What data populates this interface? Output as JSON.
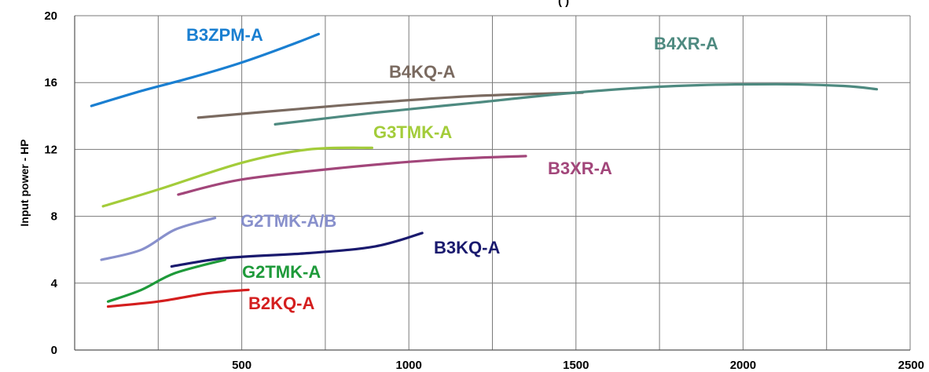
{
  "chart_data": {
    "type": "line",
    "title": "",
    "top_text": "(  )",
    "xlabel": "",
    "ylabel": "Input power - HP",
    "xlim": [
      0,
      2500
    ],
    "ylim": [
      0,
      20
    ],
    "x_ticks": [
      500,
      1000,
      1500,
      2000,
      2500
    ],
    "x_tick_labels": [
      "500",
      "1000",
      "1500",
      "2000",
      "2500"
    ],
    "y_ticks": [
      0,
      4,
      8,
      12,
      16,
      20
    ],
    "y_tick_labels": [
      "0",
      "4",
      "8",
      "12",
      "16",
      "20"
    ],
    "grid": true,
    "series": [
      {
        "name": "B3ZPM-A",
        "color": "#1a7fd1",
        "x": [
          50,
          200,
          350,
          500,
          640,
          730
        ],
        "y": [
          14.6,
          15.5,
          16.3,
          17.2,
          18.2,
          18.9
        ]
      },
      {
        "name": "B4KQ-A",
        "color": "#7a6a60",
        "x": [
          370,
          600,
          900,
          1200,
          1520
        ],
        "y": [
          13.9,
          14.3,
          14.8,
          15.2,
          15.4
        ]
      },
      {
        "name": "B4XR-A",
        "color": "#4e8a80",
        "x": [
          600,
          900,
          1200,
          1500,
          1800,
          2100,
          2300,
          2400
        ],
        "y": [
          13.5,
          14.2,
          14.8,
          15.4,
          15.8,
          15.9,
          15.8,
          15.6
        ]
      },
      {
        "name": "G3TMK-A",
        "color": "#a3cc3a",
        "x": [
          85,
          250,
          500,
          700,
          890
        ],
        "y": [
          8.6,
          9.6,
          11.2,
          12.0,
          12.1
        ]
      },
      {
        "name": "B3XR-A",
        "color": "#a2467a",
        "x": [
          310,
          500,
          800,
          1100,
          1350
        ],
        "y": [
          9.3,
          10.2,
          10.9,
          11.4,
          11.6
        ]
      },
      {
        "name": "G2TMK-A/B",
        "color": "#8890cc",
        "x": [
          80,
          200,
          300,
          420
        ],
        "y": [
          5.4,
          6.0,
          7.2,
          7.9
        ]
      },
      {
        "name": "B3KQ-A",
        "color": "#1a1a6e",
        "x": [
          290,
          450,
          700,
          900,
          1040
        ],
        "y": [
          5.0,
          5.5,
          5.8,
          6.2,
          7.0
        ]
      },
      {
        "name": "G2TMK-A",
        "color": "#1e9a3a",
        "x": [
          100,
          200,
          300,
          450
        ],
        "y": [
          2.9,
          3.6,
          4.6,
          5.4
        ]
      },
      {
        "name": "B2KQ-A",
        "color": "#d41e1e",
        "x": [
          100,
          250,
          400,
          520
        ],
        "y": [
          2.6,
          2.9,
          3.4,
          3.6
        ]
      }
    ]
  }
}
